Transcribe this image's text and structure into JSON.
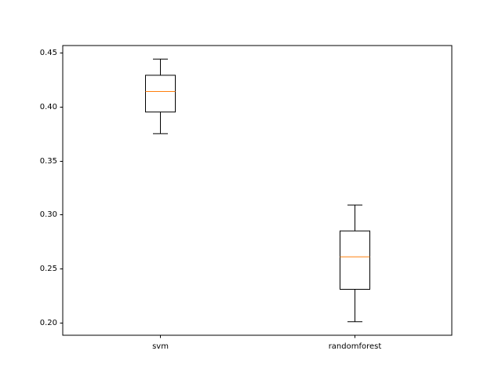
{
  "chart_data": {
    "type": "box",
    "title": "",
    "xlabel": "",
    "ylabel": "",
    "categories": [
      "svm",
      "randomforest"
    ],
    "boxes": [
      {
        "label": "svm",
        "whisker_low": 0.375,
        "q1": 0.395,
        "median": 0.414,
        "q3": 0.429,
        "whisker_high": 0.444
      },
      {
        "label": "randomforest",
        "whisker_low": 0.201,
        "q1": 0.231,
        "median": 0.261,
        "q3": 0.285,
        "whisker_high": 0.309
      }
    ],
    "ylim": [
      0.1885,
      0.4565
    ],
    "yticks": [
      0.2,
      0.25,
      0.3,
      0.35,
      0.4,
      0.45
    ],
    "ytick_labels": [
      "0.20",
      "0.25",
      "0.30",
      "0.35",
      "0.40",
      "0.45"
    ],
    "grid": false,
    "legend": "none",
    "colors": {
      "box": "#000000",
      "median": "#ff7f0e",
      "axes": "#000000",
      "background": "#ffffff"
    }
  }
}
